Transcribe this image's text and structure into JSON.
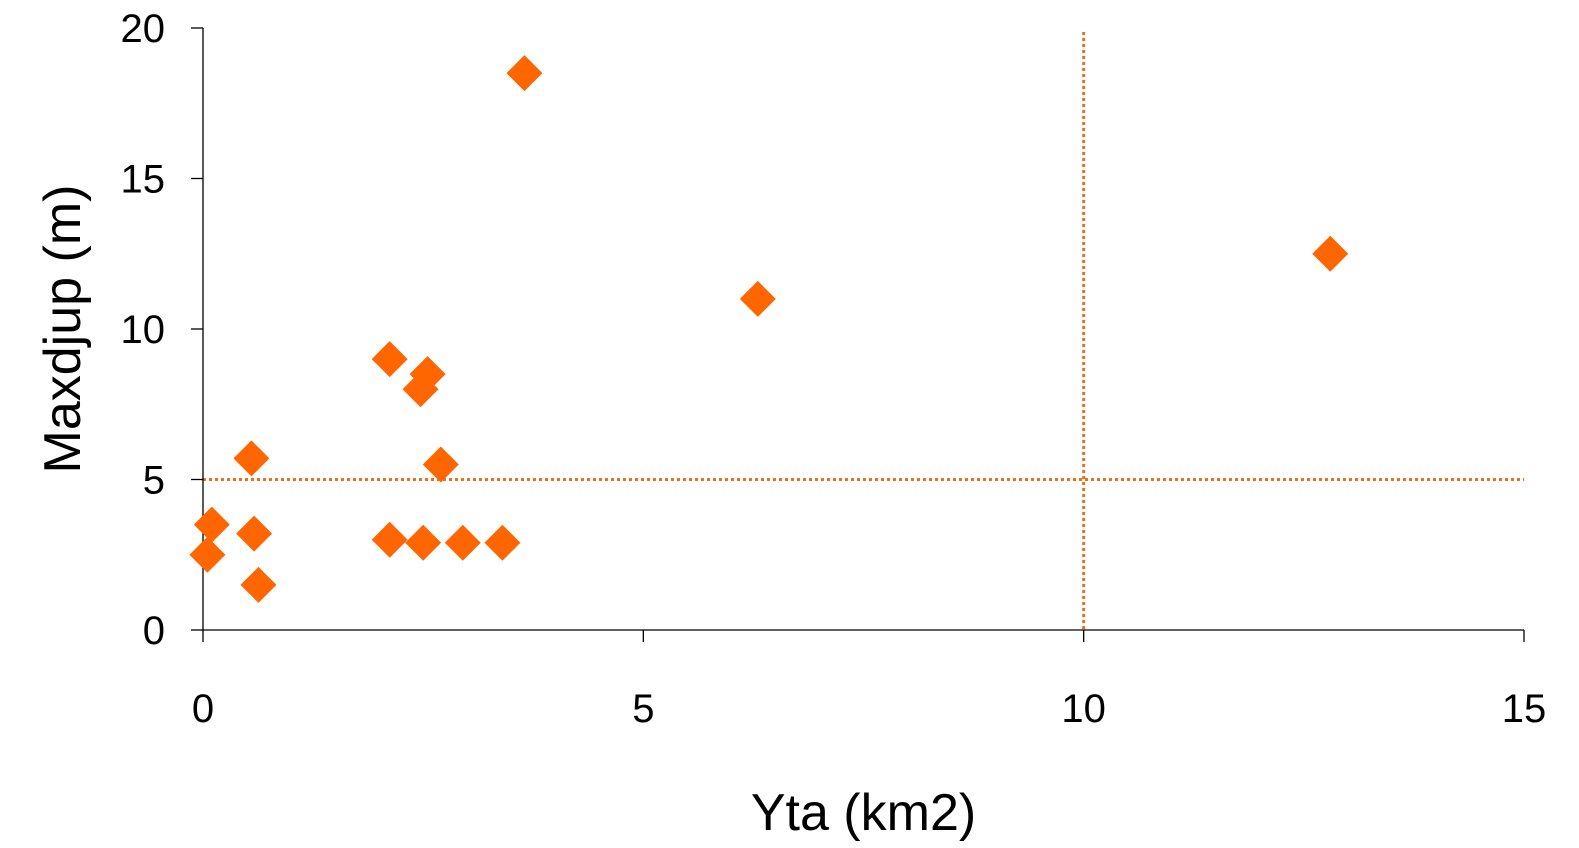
{
  "chart_data": {
    "type": "scatter",
    "title": "",
    "xlabel": "Yta (km2)",
    "ylabel": "Maxdjup (m)",
    "xlim": [
      0,
      15
    ],
    "ylim": [
      0,
      20
    ],
    "xticks": [
      0,
      5,
      10,
      15
    ],
    "yticks": [
      0,
      5,
      10,
      15,
      20
    ],
    "grid": false,
    "legend": "none",
    "marker": "diamond",
    "marker_color": "#FF6600",
    "reference_line_color": "#E8701F",
    "reference_lines": {
      "horizontal_y": 5,
      "vertical_x": 10
    },
    "series": [
      {
        "points": [
          {
            "x": 0.05,
            "y": 2.5
          },
          {
            "x": 0.1,
            "y": 3.5
          },
          {
            "x": 0.55,
            "y": 5.7
          },
          {
            "x": 0.58,
            "y": 3.2
          },
          {
            "x": 0.63,
            "y": 1.5
          },
          {
            "x": 2.12,
            "y": 9.0
          },
          {
            "x": 2.12,
            "y": 3.0
          },
          {
            "x": 2.47,
            "y": 8.0
          },
          {
            "x": 2.55,
            "y": 8.5
          },
          {
            "x": 2.5,
            "y": 2.9
          },
          {
            "x": 2.7,
            "y": 5.5
          },
          {
            "x": 2.95,
            "y": 2.9
          },
          {
            "x": 3.4,
            "y": 2.9
          },
          {
            "x": 3.65,
            "y": 18.5
          },
          {
            "x": 6.3,
            "y": 11.0
          },
          {
            "x": 12.8,
            "y": 12.5
          }
        ]
      }
    ]
  }
}
